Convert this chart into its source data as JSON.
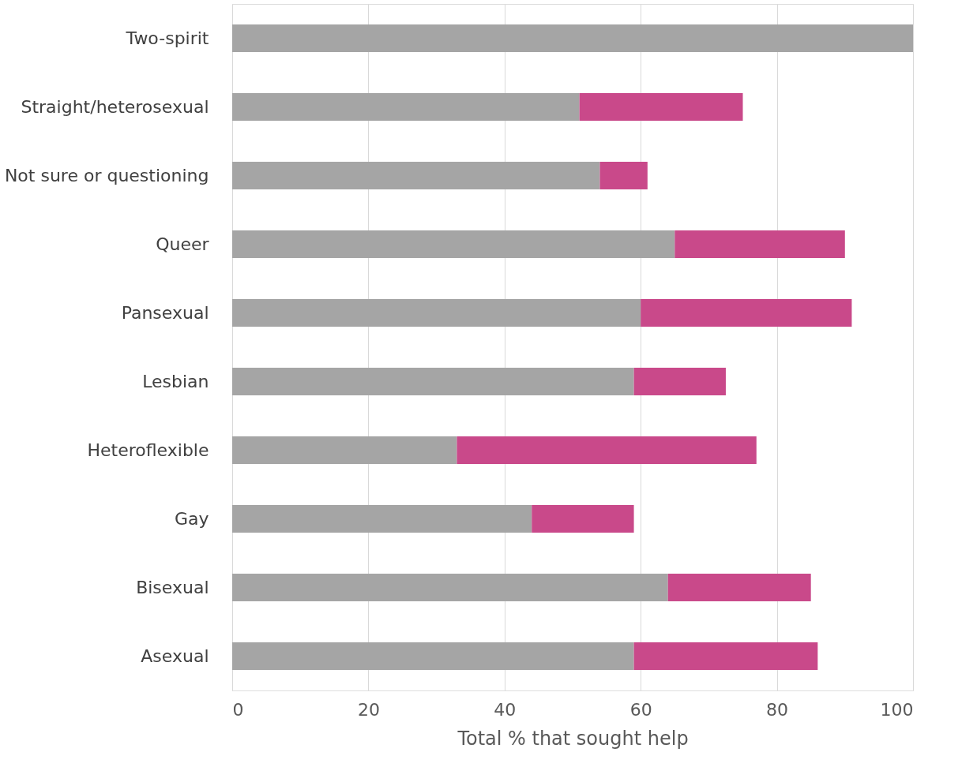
{
  "chart_data": {
    "type": "bar",
    "orientation": "horizontal",
    "stacked": true,
    "xlabel": "Total % that sought help",
    "categories": [
      "Two-spirit",
      "Straight/heterosexual",
      "Not sure or questioning",
      "Queer",
      "Pansexual",
      "Lesbian",
      "Heteroflexible",
      "Gay",
      "Bisexual",
      "Asexual"
    ],
    "series": [
      {
        "color": "#a5a5a5",
        "values": [
          100,
          51,
          54,
          65,
          60,
          59,
          33,
          44,
          64,
          59
        ]
      },
      {
        "color": "#c9498a",
        "values": [
          0,
          24,
          7,
          25,
          31,
          13.5,
          44,
          15,
          21,
          27
        ]
      }
    ],
    "xlim": [
      0,
      100
    ],
    "xticks": [
      0,
      20,
      40,
      60,
      80,
      100
    ],
    "grid": "x",
    "legend": false
  }
}
